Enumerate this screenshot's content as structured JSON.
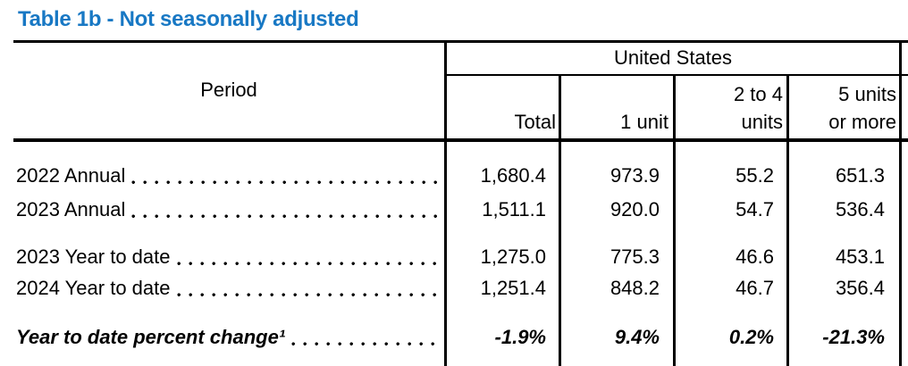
{
  "title": "Table 1b - Not seasonally adjusted",
  "colors": {
    "title_blue": "#1878c4",
    "text": "#000000",
    "background": "#ffffff"
  },
  "table": {
    "region_header": "United States",
    "period_header": "Period",
    "columns": [
      {
        "line1": "",
        "line2": "Total"
      },
      {
        "line1": "",
        "line2": "1 unit"
      },
      {
        "line1": "2 to 4",
        "line2": "units"
      },
      {
        "line1": "5 units",
        "line2": "or more"
      }
    ],
    "rows": [
      {
        "label": "2022 Annual",
        "values": [
          "1,680.4",
          "973.9",
          "55.2",
          "651.3"
        ]
      },
      {
        "label": "2023 Annual",
        "values": [
          "1,511.1",
          "920.0",
          "54.7",
          "536.4"
        ]
      },
      {
        "label": "2023 Year to date",
        "values": [
          "1,275.0",
          "775.3",
          "46.6",
          "453.1"
        ]
      },
      {
        "label": "2024 Year to date",
        "values": [
          "1,251.4",
          "848.2",
          "46.7",
          "356.4"
        ]
      },
      {
        "label": "Year to date percent change¹",
        "values": [
          "-1.9%",
          "9.4%",
          "0.2%",
          "-21.3%"
        ]
      }
    ]
  }
}
